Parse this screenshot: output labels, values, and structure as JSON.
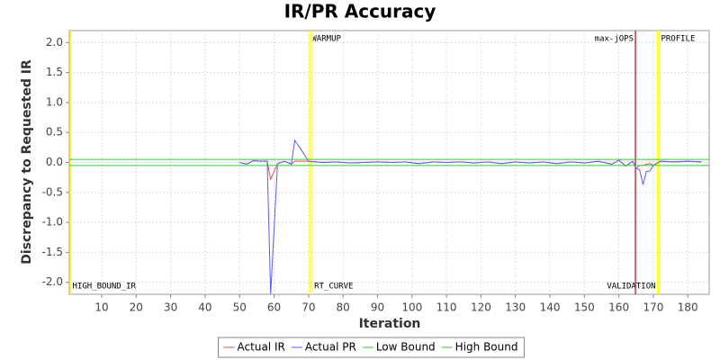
{
  "chart_data": {
    "type": "line",
    "title": "IR/PR Accuracy",
    "x_label": "Iteration",
    "y_label": "Discrepancy to Requested IR",
    "xlim": [
      0.6,
      186.2
    ],
    "ylim": [
      -2.2,
      2.2
    ],
    "xticks": [
      10,
      20,
      30,
      40,
      50,
      60,
      70,
      80,
      90,
      100,
      110,
      120,
      130,
      140,
      150,
      160,
      170,
      180
    ],
    "yticks": [
      {
        "value": -2,
        "label": "-2.0"
      },
      -1.5,
      {
        "value": -1,
        "label": "-1.0"
      },
      -0.5,
      {
        "value": 0,
        "label": "0.0"
      },
      0.5,
      {
        "value": 1,
        "label": "1.0"
      },
      1.5,
      {
        "value": 2,
        "label": "2.0"
      }
    ],
    "grid": true,
    "legend": "bottom",
    "series": [
      {
        "name": "Actual IR",
        "color": "#e05050",
        "x": [
          50,
          52,
          54,
          56,
          58,
          59,
          61,
          63,
          65,
          66,
          68,
          70,
          74,
          78,
          82,
          86,
          90,
          94,
          98,
          102,
          106,
          110,
          114,
          118,
          122,
          126,
          130,
          134,
          138,
          142,
          146,
          150,
          154,
          158,
          160,
          162,
          164,
          165,
          166,
          167,
          168,
          169,
          170,
          172,
          176,
          180,
          184
        ],
        "values": [
          0,
          -0.03,
          0.03,
          0.02,
          0.02,
          -0.28,
          -0.02,
          0.02,
          -0.03,
          0.02,
          0.02,
          0.02,
          0,
          0.01,
          -0.01,
          0,
          0.01,
          0,
          0.01,
          -0.02,
          0.01,
          0,
          0.01,
          -0.01,
          0.01,
          -0.02,
          0.01,
          -0.01,
          0.01,
          -0.02,
          0.01,
          -0.01,
          0.02,
          -0.03,
          0.04,
          -0.06,
          0.02,
          -0.1,
          -0.05,
          -0.05,
          -0.03,
          -0.02,
          -0.05,
          0.02,
          0.01,
          0.02,
          0.01
        ]
      },
      {
        "name": "Actual PR",
        "color": "#5a5aff",
        "x": [
          50,
          52,
          54,
          56,
          58,
          59,
          61,
          63,
          65,
          66,
          68,
          70,
          74,
          78,
          82,
          86,
          90,
          94,
          98,
          102,
          106,
          110,
          114,
          118,
          122,
          126,
          130,
          134,
          138,
          142,
          146,
          150,
          154,
          158,
          160,
          162,
          164,
          165,
          166,
          167,
          168,
          169,
          170,
          172,
          176,
          180,
          184
        ],
        "values": [
          0,
          -0.03,
          0.03,
          0.02,
          0.02,
          -2.2,
          -0.02,
          0.02,
          -0.03,
          0.37,
          0.2,
          0.02,
          0,
          0.01,
          -0.01,
          0,
          0.01,
          0,
          0.01,
          -0.02,
          0.01,
          0,
          0.01,
          -0.01,
          0.01,
          -0.02,
          0.01,
          -0.01,
          0.01,
          -0.02,
          0.01,
          -0.01,
          0.02,
          -0.03,
          0.04,
          -0.06,
          0.02,
          -0.1,
          -0.12,
          -0.37,
          -0.15,
          -0.14,
          -0.05,
          0.02,
          0.01,
          0.02,
          0.01
        ]
      },
      {
        "name": "Low Bound",
        "color": "#33cc33",
        "x": [
          0.6,
          186.2
        ],
        "values": [
          -0.05,
          -0.05
        ]
      },
      {
        "name": "High Bound",
        "color": "#33cc33",
        "x": [
          0.6,
          186.2
        ],
        "values": [
          0.05,
          0.05
        ]
      }
    ],
    "markers": [
      {
        "label": "HIGH_BOUND_IR",
        "x": 1,
        "color": "#ffff33",
        "position": "bottom",
        "side": "right"
      },
      {
        "label": "WARMUP",
        "x": 70.4,
        "color": "#ffff33",
        "position": "top",
        "side": "right"
      },
      {
        "label": "RT_CURVE",
        "x": 71.1,
        "color": "#ffff33",
        "position": "bottom",
        "side": "right"
      },
      {
        "label": "max-jOPS",
        "x": 164.8,
        "color": "#cc0000",
        "position": "top",
        "side": "left"
      },
      {
        "label": "VALIDATION",
        "x": 171.2,
        "color": "#ffff33",
        "position": "bottom",
        "side": "left"
      },
      {
        "label": "PROFILE",
        "x": 171.7,
        "color": "#ffff33",
        "position": "top",
        "side": "right"
      }
    ]
  }
}
